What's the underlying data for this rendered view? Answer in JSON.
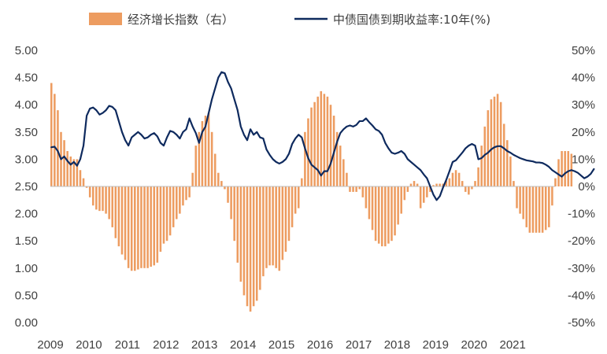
{
  "chart_data": {
    "type": "bar+line",
    "legend_position": "top",
    "grid": false,
    "x_axis": {
      "labels": [
        "2009",
        "2010",
        "2011",
        "2012",
        "2013",
        "2014",
        "2015",
        "2016",
        "2017",
        "2018",
        "2019",
        "2020",
        "2021"
      ],
      "range": [
        2009,
        2022.1
      ]
    },
    "y_left": {
      "min": 0,
      "max": 5,
      "ticks": [
        "0.00",
        "0.50",
        "1.00",
        "1.50",
        "2.00",
        "2.50",
        "3.00",
        "3.50",
        "4.00",
        "4.50",
        "5.00"
      ]
    },
    "y_right": {
      "min": -0.5,
      "max": 0.5,
      "ticks": [
        "50%",
        "40%",
        "30%",
        "20%",
        "10%",
        "0%",
        "-10%",
        "-20%",
        "-30%",
        "-40%",
        "-50%"
      ]
    },
    "series": [
      {
        "name": "经济增长指数（右）",
        "kind": "bar",
        "axis": "right",
        "color": "#ED9C60",
        "start": 2009,
        "step_months": 1,
        "values": [
          0.38,
          0.34,
          0.28,
          0.2,
          0.17,
          0.13,
          0.11,
          0.1,
          0.1,
          0.06,
          0.03,
          -0.005,
          -0.04,
          -0.07,
          -0.085,
          -0.09,
          -0.09,
          -0.1,
          -0.12,
          -0.15,
          -0.19,
          -0.22,
          -0.25,
          -0.27,
          -0.3,
          -0.31,
          -0.31,
          -0.305,
          -0.3,
          -0.3,
          -0.3,
          -0.295,
          -0.29,
          -0.28,
          -0.24,
          -0.21,
          -0.2,
          -0.18,
          -0.15,
          -0.12,
          -0.1,
          -0.07,
          -0.05,
          -0.04,
          0.05,
          0.15,
          0.2,
          0.24,
          0.26,
          0.27,
          0.2,
          0.12,
          0.05,
          0.02,
          -0.01,
          -0.06,
          -0.12,
          -0.2,
          -0.28,
          -0.35,
          -0.4,
          -0.44,
          -0.46,
          -0.44,
          -0.42,
          -0.38,
          -0.33,
          -0.3,
          -0.29,
          -0.29,
          -0.3,
          -0.31,
          -0.27,
          -0.24,
          -0.2,
          -0.15,
          -0.1,
          -0.08,
          0.03,
          0.2,
          0.25,
          0.29,
          0.31,
          0.33,
          0.35,
          0.34,
          0.33,
          0.3,
          0.26,
          0.2,
          0.15,
          0.1,
          0.05,
          -0.02,
          -0.02,
          -0.02,
          -0.01,
          -0.04,
          -0.08,
          -0.12,
          -0.16,
          -0.2,
          -0.21,
          -0.22,
          -0.22,
          -0.21,
          -0.2,
          -0.18,
          -0.14,
          -0.1,
          -0.05,
          -0.02,
          0.01,
          0.02,
          0.01,
          -0.08,
          -0.06,
          -0.04,
          -0.02,
          0.005,
          0.01,
          0.01,
          0.01,
          0.02,
          0.03,
          0.05,
          0.06,
          0.05,
          0.02,
          -0.02,
          -0.03,
          -0.01,
          0.02,
          0.07,
          0.15,
          0.22,
          0.28,
          0.32,
          0.33,
          0.34,
          0.31,
          0.23,
          0.17,
          0.11,
          0.02,
          -0.08,
          -0.1,
          -0.12,
          -0.15,
          -0.17,
          -0.17,
          -0.17,
          -0.17,
          -0.17,
          -0.16,
          -0.15,
          -0.07,
          0.03,
          0.1,
          0.13,
          0.13,
          0.13,
          0.12
        ]
      },
      {
        "name": "中债国债到期收益率:10年(%)",
        "kind": "line",
        "axis": "left",
        "color": "#0E2A5E",
        "start": 2009,
        "step_months": 1,
        "values": [
          3.22,
          3.23,
          3.15,
          3.0,
          3.05,
          2.97,
          2.9,
          2.95,
          2.88,
          3.0,
          3.25,
          3.8,
          3.93,
          3.95,
          3.9,
          3.82,
          3.85,
          3.9,
          3.98,
          3.96,
          3.9,
          3.7,
          3.5,
          3.35,
          3.25,
          3.4,
          3.45,
          3.5,
          3.45,
          3.38,
          3.4,
          3.45,
          3.48,
          3.42,
          3.3,
          3.25,
          3.4,
          3.52,
          3.5,
          3.45,
          3.38,
          3.5,
          3.55,
          3.75,
          3.6,
          3.48,
          3.3,
          3.5,
          3.6,
          3.85,
          4.1,
          4.3,
          4.5,
          4.6,
          4.58,
          4.42,
          4.3,
          4.1,
          3.9,
          3.6,
          3.45,
          3.35,
          3.55,
          3.45,
          3.5,
          3.4,
          3.38,
          3.18,
          3.08,
          3.0,
          2.95,
          2.92,
          2.95,
          3.0,
          3.1,
          3.28,
          3.38,
          3.45,
          3.4,
          3.2,
          3.02,
          2.9,
          2.85,
          2.8,
          2.7,
          2.78,
          2.78,
          2.92,
          3.12,
          3.32,
          3.48,
          3.55,
          3.6,
          3.62,
          3.6,
          3.63,
          3.7,
          3.7,
          3.75,
          3.68,
          3.62,
          3.55,
          3.52,
          3.45,
          3.3,
          3.2,
          3.12,
          3.1,
          3.12,
          3.15,
          3.1,
          3.0,
          2.95,
          2.9,
          2.85,
          2.8,
          2.72,
          2.65,
          2.5,
          2.35,
          2.25,
          2.32,
          2.48,
          2.62,
          2.78,
          2.95,
          2.98,
          3.05,
          3.12,
          3.2,
          3.25,
          3.28,
          3.25,
          3.0,
          3.02,
          3.08,
          3.12,
          3.18,
          3.22,
          3.24,
          3.24,
          3.2,
          3.15,
          3.12,
          3.08,
          3.05,
          3.02,
          3.0,
          2.98,
          2.97,
          2.96,
          2.94,
          2.94,
          2.93,
          2.9,
          2.86,
          2.8,
          2.76,
          2.72,
          2.68,
          2.74,
          2.78,
          2.8,
          2.78,
          2.75,
          2.7,
          2.65,
          2.68,
          2.73,
          2.82
        ]
      }
    ]
  }
}
